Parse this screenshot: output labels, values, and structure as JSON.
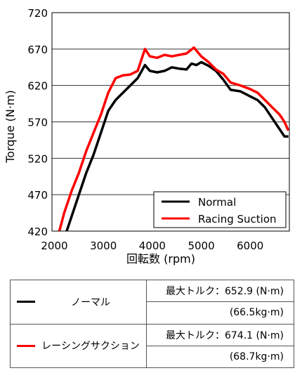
{
  "chart_data": {
    "type": "line",
    "xlabel": "回転数 (rpm)",
    "ylabel": "Torque (N·m)",
    "xlim": [
      1950,
      6800
    ],
    "ylim": [
      420,
      720
    ],
    "x_ticks": [
      "2000",
      "3000",
      "4000",
      "5000",
      "6000"
    ],
    "y_ticks": [
      "420",
      "470",
      "520",
      "570",
      "620",
      "670",
      "720"
    ],
    "grid": "horizontal",
    "legend_position": "bottom-right",
    "series": [
      {
        "name": "Normal",
        "color": "#000000",
        "x": [
          2180,
          2250,
          2350,
          2500,
          2650,
          2800,
          2950,
          3100,
          3250,
          3400,
          3550,
          3700,
          3850,
          3950,
          4100,
          4250,
          4400,
          4550,
          4700,
          4800,
          4900,
          5000,
          5150,
          5300,
          5450,
          5600,
          5800,
          6000,
          6150,
          6300,
          6450,
          6600,
          6700,
          6780
        ],
        "y": [
          415,
          420,
          440,
          470,
          500,
          525,
          555,
          585,
          600,
          610,
          620,
          630,
          648,
          640,
          638,
          640,
          645,
          643,
          642,
          650,
          648,
          652,
          647,
          640,
          628,
          614,
          612,
          605,
          600,
          590,
          575,
          560,
          550,
          550
        ]
      },
      {
        "name": "Racing Suction",
        "color": "#ff0000",
        "x": [
          2030,
          2100,
          2200,
          2350,
          2500,
          2650,
          2800,
          2950,
          3100,
          3250,
          3400,
          3550,
          3700,
          3850,
          3950,
          4100,
          4250,
          4400,
          4550,
          4700,
          4850,
          5000,
          5150,
          5300,
          5450,
          5600,
          5800,
          6000,
          6150,
          6300,
          6450,
          6600,
          6700,
          6780
        ],
        "y": [
          415,
          420,
          445,
          475,
          500,
          530,
          555,
          580,
          610,
          630,
          634,
          635,
          640,
          670,
          660,
          658,
          662,
          660,
          662,
          664,
          672,
          660,
          652,
          642,
          636,
          624,
          620,
          615,
          610,
          600,
          590,
          580,
          570,
          558
        ]
      }
    ]
  },
  "table": {
    "rows": [
      {
        "name": "ノーマル",
        "color": "#000000",
        "line1": "最大トルク：652.9 (N·m)",
        "line2": "(66.5kg·m)"
      },
      {
        "name": "レーシングサクション",
        "color": "#ff0000",
        "line1": "最大トルク：674.1 (N·m)",
        "line2": "(68.7kg·m)"
      }
    ]
  }
}
